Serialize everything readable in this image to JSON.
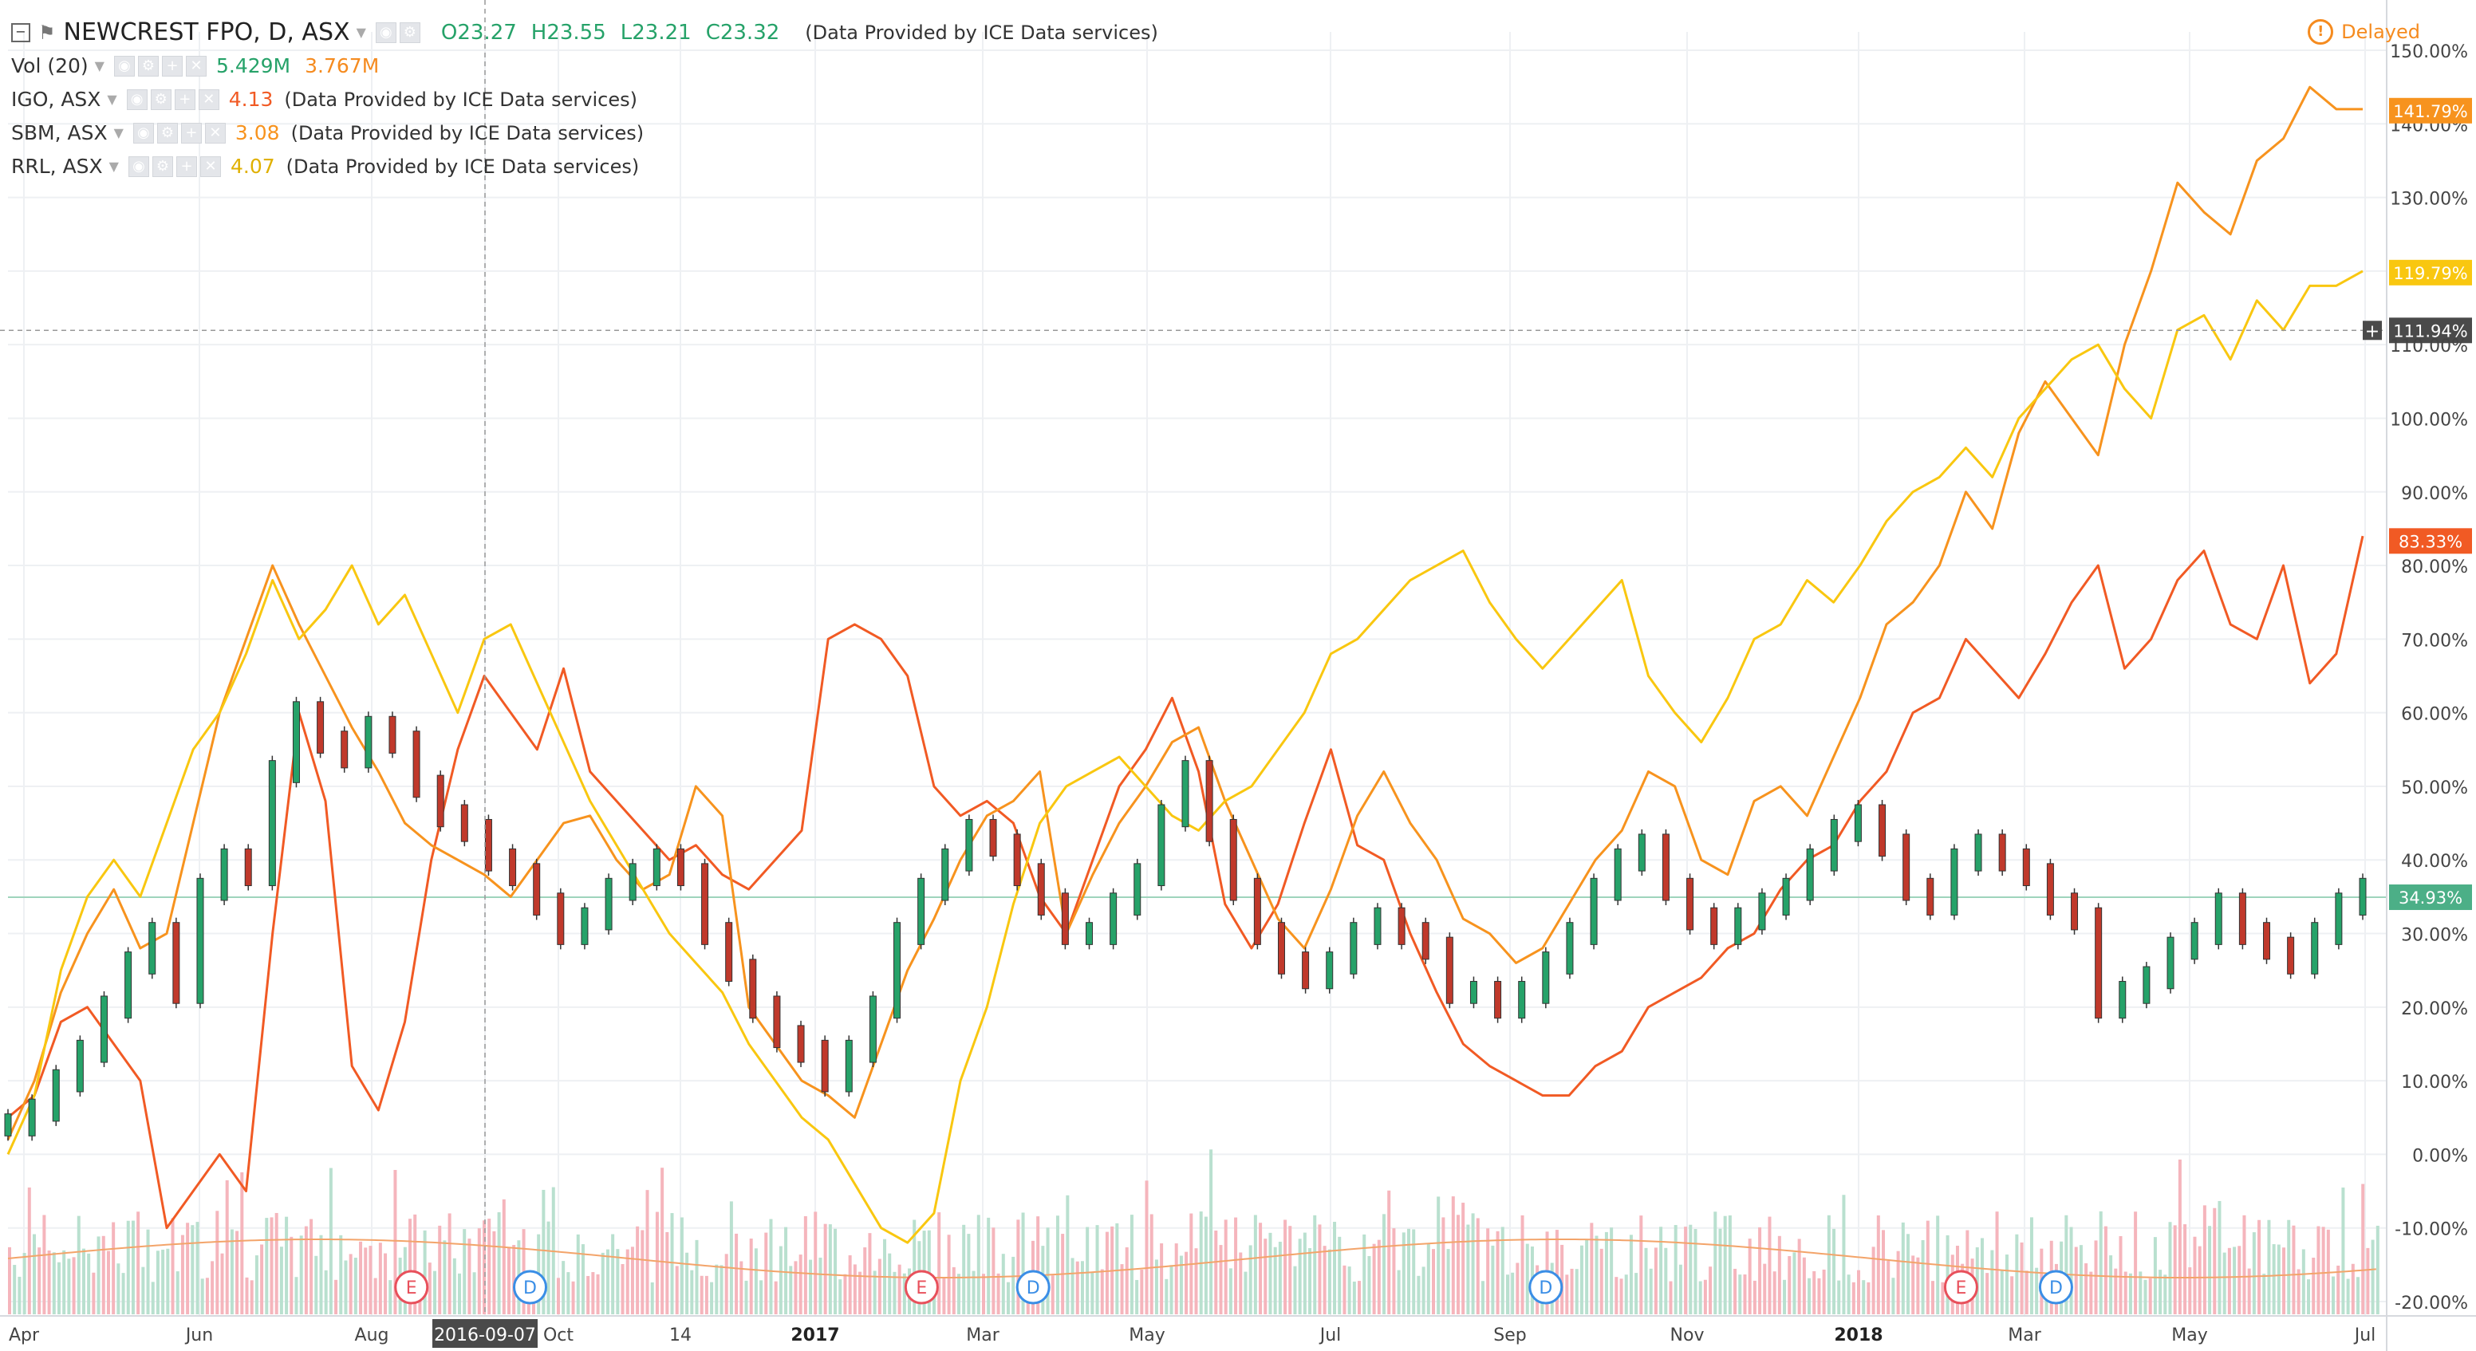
{
  "header": {
    "symbol": "NEWCREST FPO, D, ASX",
    "open": "O23.27",
    "high": "H23.55",
    "low": "L23.21",
    "close": "C23.32",
    "provider_note": "(Data Provided by ICE Data services)",
    "delayed": "Delayed"
  },
  "legend": {
    "vol_label": "Vol (20)",
    "vol_value": "5.429M",
    "vol_ma": "3.767M",
    "overlays": [
      {
        "label": "IGO, ASX",
        "value": "4.13",
        "color": "#f15a24"
      },
      {
        "label": "SBM, ASX",
        "value": "3.08",
        "color": "#f7931e"
      },
      {
        "label": "RRL, ASX",
        "value": "4.07",
        "color": "#f9c710"
      }
    ],
    "note": "(Data Provided by ICE Data services)"
  },
  "colors": {
    "up": "#26a269",
    "down": "#c0392b",
    "igo": "#f15a24",
    "sbm": "#f7931e",
    "rrl": "#f9c710",
    "vol_up": "#b9e0cf",
    "vol_down": "#f5b5bc",
    "vol_ma": "#f3a46a",
    "grid": "#eef0f3"
  },
  "chart_data": {
    "type": "line",
    "x_axis_ticks": [
      "Apr",
      "Jun",
      "Aug",
      "2016-09-07",
      "Oct",
      "14",
      "2017",
      "Mar",
      "May",
      "Jul",
      "Sep",
      "Nov",
      "2018",
      "Mar",
      "May",
      "Jul"
    ],
    "y_axis_ticks": [
      "150.00%",
      "140.00%",
      "130.00%",
      "120.00%",
      "110.00%",
      "100.00%",
      "90.00%",
      "80.00%",
      "70.00%",
      "60.00%",
      "50.00%",
      "40.00%",
      "30.00%",
      "20.00%",
      "10.00%",
      "0.00%",
      "-10.00%",
      "-20.00%"
    ],
    "ylim": [
      -20,
      150
    ],
    "crosshair": {
      "x_label": "2016-09-07",
      "y_label": "111.94%",
      "y_value": 111.94
    },
    "last_value_labels": [
      {
        "series": "SBM, ASX",
        "text": "141.79%",
        "value": 141.79,
        "color": "#f7931e"
      },
      {
        "series": "RRL, ASX",
        "text": "119.79%",
        "value": 119.79,
        "color": "#f9c710"
      },
      {
        "series": "IGO, ASX",
        "text": "83.33%",
        "value": 83.33,
        "color": "#f15a24"
      },
      {
        "series": "NEWCREST FPO",
        "text": "34.93%",
        "value": 34.93,
        "color": "#4caf87"
      }
    ],
    "events": [
      {
        "type": "E",
        "x": 0.17
      },
      {
        "type": "D",
        "x": 0.22
      },
      {
        "type": "E",
        "x": 0.385
      },
      {
        "type": "D",
        "x": 0.432
      },
      {
        "type": "D",
        "x": 0.648
      },
      {
        "type": "E",
        "x": 0.823
      },
      {
        "type": "D",
        "x": 0.863
      }
    ],
    "series": [
      {
        "name": "IGO, ASX",
        "color": "#f15a24",
        "values": [
          5,
          8,
          18,
          20,
          15,
          10,
          -10,
          -5,
          0,
          -5,
          30,
          60,
          48,
          12,
          6,
          18,
          40,
          55,
          65,
          60,
          55,
          66,
          52,
          48,
          44,
          40,
          42,
          38,
          36,
          40,
          44,
          70,
          72,
          70,
          65,
          50,
          46,
          48,
          45,
          35,
          30,
          40,
          50,
          55,
          62,
          52,
          34,
          28,
          34,
          45,
          55,
          42,
          40,
          30,
          22,
          15,
          12,
          10,
          8,
          8,
          12,
          14,
          20,
          22,
          24,
          28,
          30,
          36,
          40,
          42,
          48,
          52,
          60,
          62,
          70,
          66,
          62,
          68,
          75,
          80,
          66,
          70,
          78,
          82,
          72,
          70,
          80,
          64,
          68,
          84
        ]
      },
      {
        "name": "SBM, ASX",
        "color": "#f7931e",
        "values": [
          2,
          10,
          22,
          30,
          36,
          28,
          30,
          45,
          60,
          70,
          80,
          72,
          65,
          58,
          52,
          45,
          42,
          40,
          38,
          35,
          40,
          45,
          46,
          40,
          36,
          38,
          50,
          46,
          20,
          15,
          10,
          8,
          5,
          15,
          25,
          32,
          40,
          46,
          48,
          52,
          30,
          38,
          45,
          50,
          56,
          58,
          48,
          40,
          32,
          28,
          36,
          46,
          52,
          45,
          40,
          32,
          30,
          26,
          28,
          34,
          40,
          44,
          52,
          50,
          40,
          38,
          48,
          50,
          46,
          54,
          62,
          72,
          75,
          80,
          90,
          85,
          98,
          105,
          100,
          95,
          110,
          120,
          132,
          128,
          125,
          135,
          138,
          145,
          142,
          142
        ]
      },
      {
        "name": "RRL, ASX",
        "color": "#f9c710",
        "values": [
          0,
          8,
          25,
          35,
          40,
          35,
          45,
          55,
          60,
          68,
          78,
          70,
          74,
          80,
          72,
          76,
          68,
          60,
          70,
          72,
          64,
          56,
          48,
          42,
          36,
          30,
          26,
          22,
          15,
          10,
          5,
          2,
          -4,
          -10,
          -12,
          -8,
          10,
          20,
          34,
          45,
          50,
          52,
          54,
          50,
          46,
          44,
          48,
          50,
          55,
          60,
          68,
          70,
          74,
          78,
          80,
          82,
          75,
          70,
          66,
          70,
          74,
          78,
          65,
          60,
          56,
          62,
          70,
          72,
          78,
          75,
          80,
          86,
          90,
          92,
          96,
          92,
          100,
          104,
          108,
          110,
          104,
          100,
          112,
          114,
          108,
          116,
          112,
          118,
          118,
          120
        ]
      },
      {
        "name": "NEWCREST FPO",
        "color": "#26a269",
        "values": [
          4,
          6,
          10,
          14,
          20,
          26,
          30,
          22,
          36,
          40,
          38,
          52,
          60,
          56,
          54,
          58,
          56,
          50,
          46,
          44,
          40,
          38,
          34,
          30,
          32,
          36,
          38,
          40,
          38,
          30,
          25,
          20,
          16,
          14,
          10,
          14,
          20,
          30,
          36,
          40,
          44,
          42,
          38,
          34,
          30,
          30,
          34,
          38,
          46,
          52,
          44,
          36,
          30,
          26,
          24,
          26,
          30,
          32,
          30,
          28,
          22,
          22,
          20,
          22,
          26,
          30,
          36,
          40,
          42,
          36,
          32,
          30,
          32,
          34,
          36,
          40,
          44,
          46,
          42,
          36,
          34,
          40,
          42,
          40,
          38,
          34,
          32,
          20,
          22,
          24,
          28,
          30,
          34,
          30,
          28,
          26,
          30,
          34,
          36
        ]
      }
    ]
  }
}
